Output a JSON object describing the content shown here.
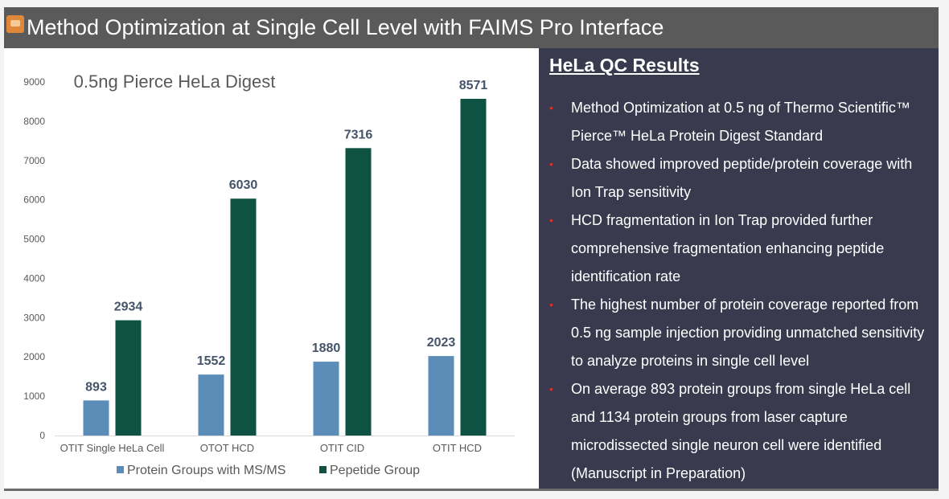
{
  "header": {
    "title": "Method Optimization at Single Cell Level with FAIMS Pro Interface",
    "logo_icon": "presentation-logo-icon"
  },
  "results": {
    "title": "HeLa QC Results",
    "bullet_color": "#d9302a",
    "bullets": [
      "Method Optimization at 0.5 ng of Thermo Scientific™ Pierce™ HeLa Protein Digest Standard",
      "Data showed improved peptide/protein coverage with Ion Trap sensitivity",
      "HCD fragmentation in Ion Trap provided further comprehensive fragmentation enhancing peptide identification rate",
      "The highest number of protein coverage reported from 0.5 ng sample injection providing unmatched sensitivity to analyze proteins in single cell level",
      "On average 893 protein groups from single HeLa cell and 1134 protein groups from laser capture microdissected single neuron cell were identified (Manuscript in Preparation)"
    ]
  },
  "chart_data": {
    "type": "bar",
    "title": "0.5ng Pierce HeLa Digest",
    "xlabel": "",
    "ylabel": "",
    "categories": [
      "OTIT Single HeLa Cell",
      "OTOT HCD",
      "OTIT CID",
      "OTIT HCD"
    ],
    "series": [
      {
        "name": "Protein Groups with MS/MS",
        "color": "#5b8db8",
        "values": [
          893,
          1552,
          1880,
          2023
        ]
      },
      {
        "name": "Pepetide Group",
        "color": "#0e5244",
        "values": [
          2934,
          6030,
          7316,
          8571
        ]
      }
    ],
    "ylim": [
      0,
      9000
    ],
    "yticks": [
      0,
      1000,
      2000,
      3000,
      4000,
      5000,
      6000,
      7000,
      8000,
      9000
    ],
    "grid": false,
    "legend": "bottom",
    "data_labels": true
  }
}
